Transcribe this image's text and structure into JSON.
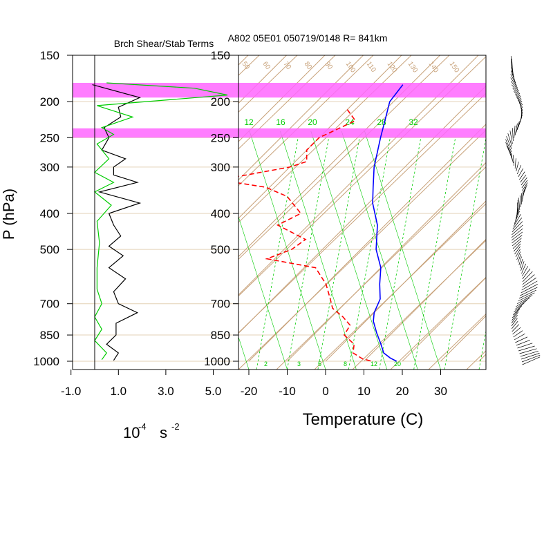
{
  "header": {
    "left_title": "Brch Shear/Stab Terms",
    "right_title": "A802 05E01 050719/0148 R= 841km"
  },
  "axes": {
    "p_label": "P (hPa)",
    "left_xlabel_base": "10",
    "left_xlabel_exp": "-4",
    "left_xlabel_unit": "s",
    "left_xlabel_exp2": "-2",
    "temp_label": "Temperature (C)",
    "pressure_ticks": [
      "150",
      "200",
      "250",
      "300",
      "400",
      "500",
      "700",
      "850",
      "1000"
    ],
    "left_x_ticks": [
      "-1.0",
      "1.0",
      "3.0",
      "5.0"
    ],
    "temp_ticks": [
      "-20",
      "-10",
      "0",
      "10",
      "20",
      "30"
    ],
    "mixing_ratio_labels": [
      "2",
      "3",
      "5",
      "8",
      "12",
      "20"
    ],
    "theta_labels": [
      "50",
      "60",
      "70",
      "80",
      "90",
      "100",
      "110",
      "120",
      "130",
      "140",
      "150"
    ],
    "thetae_labels": [
      "12",
      "16",
      "20",
      "24",
      "28",
      "32"
    ],
    "colors": {
      "temperature": "#0000ff",
      "dewpoint": "#ff0000",
      "shear_term": "#000000",
      "stab_term": "#00cc00",
      "highlight": "#ff66ff",
      "adiabats": "#c8a27a",
      "moist": "#00cc00"
    }
  },
  "chart_data": [
    {
      "type": "line",
      "title": "Brch Shear/Stab Terms",
      "xlabel": "10^-4 s^-2",
      "ylabel": "P (hPa)",
      "xlim": [
        -1.5,
        5.5
      ],
      "y_scale": "log",
      "ylim": [
        1000,
        150
      ],
      "highlight_bands_hPa": [
        [
          178,
          195
        ],
        [
          236,
          250
        ]
      ],
      "series": [
        {
          "color": "#000000",
          "points": [
            [
              -0.1,
              180
            ],
            [
              1.9,
              195
            ],
            [
              1.0,
              207
            ],
            [
              1.1,
              220
            ],
            [
              0.4,
              235
            ],
            [
              0.6,
              250
            ],
            [
              0.3,
              270
            ],
            [
              1.3,
              285
            ],
            [
              0.8,
              300
            ],
            [
              0.8,
              315
            ],
            [
              1.8,
              330
            ],
            [
              0.2,
              350
            ],
            [
              1.9,
              375
            ],
            [
              0.6,
              400
            ],
            [
              0.8,
              430
            ],
            [
              1.1,
              460
            ],
            [
              0.6,
              490
            ],
            [
              1.2,
              520
            ],
            [
              0.6,
              560
            ],
            [
              1.3,
              600
            ],
            [
              0.8,
              650
            ],
            [
              1.0,
              700
            ],
            [
              1.8,
              740
            ],
            [
              0.9,
              790
            ],
            [
              0.9,
              850
            ],
            [
              0.5,
              900
            ],
            [
              1.0,
              950
            ],
            [
              0.8,
              995
            ]
          ]
        },
        {
          "color": "#00cc00",
          "points": [
            [
              0.5,
              178
            ],
            [
              4.2,
              184
            ],
            [
              5.6,
              192
            ],
            [
              0.1,
              205
            ],
            [
              1.6,
              220
            ],
            [
              0.3,
              235
            ],
            [
              0.8,
              245
            ],
            [
              0.1,
              260
            ],
            [
              0.6,
              285
            ],
            [
              0.0,
              310
            ],
            [
              0.8,
              330
            ],
            [
              0.0,
              350
            ],
            [
              0.7,
              380
            ],
            [
              0.1,
              420
            ],
            [
              0.2,
              480
            ],
            [
              0.1,
              560
            ],
            [
              0.1,
              640
            ],
            [
              0.3,
              700
            ],
            [
              0.0,
              760
            ],
            [
              0.3,
              820
            ],
            [
              0.0,
              880
            ],
            [
              0.5,
              950
            ],
            [
              0.3,
              990
            ]
          ]
        }
      ]
    },
    {
      "type": "line",
      "title": "A802 05E01 050719/0148 R= 841km",
      "xlabel": "Temperature (C)",
      "ylabel": "P (hPa)",
      "xlim": [
        -25,
        35
      ],
      "y_scale": "log",
      "ylim": [
        1000,
        150
      ],
      "skew": "skew-T",
      "series": [
        {
          "color": "#0000ff",
          "line_style": "solid",
          "points": [
            [
              -52,
              180
            ],
            [
              -51,
              200
            ],
            [
              -48,
              220
            ],
            [
              -44,
              250
            ],
            [
              -38,
              300
            ],
            [
              -33,
              340
            ],
            [
              -29,
              375
            ],
            [
              -22,
              430
            ],
            [
              -16,
              500
            ],
            [
              -10,
              560
            ],
            [
              -6,
              620
            ],
            [
              -2,
              680
            ],
            [
              0,
              740
            ],
            [
              2,
              780
            ],
            [
              6,
              840
            ],
            [
              10,
              900
            ],
            [
              13,
              950
            ],
            [
              16,
              980
            ],
            [
              18.5,
              1000
            ]
          ]
        },
        {
          "color": "#ff0000",
          "line_style": "dashed",
          "points": [
            [
              -60,
              210
            ],
            [
              -55,
              225
            ],
            [
              -60,
              250
            ],
            [
              -60,
              270
            ],
            [
              -57,
              290
            ],
            [
              -60,
              300
            ],
            [
              -75,
              325
            ],
            [
              -61,
              340
            ],
            [
              -53,
              360
            ],
            [
              -45,
              400
            ],
            [
              -48,
              430
            ],
            [
              -37,
              470
            ],
            [
              -38,
              500
            ],
            [
              -42,
              530
            ],
            [
              -27,
              560
            ],
            [
              -20,
              620
            ],
            [
              -15,
              680
            ],
            [
              -12,
              720
            ],
            [
              -7,
              760
            ],
            [
              -3,
              800
            ],
            [
              -2,
              850
            ],
            [
              3,
              900
            ],
            [
              5,
              950
            ],
            [
              9,
              985
            ],
            [
              12,
              1000
            ]
          ]
        }
      ]
    }
  ]
}
